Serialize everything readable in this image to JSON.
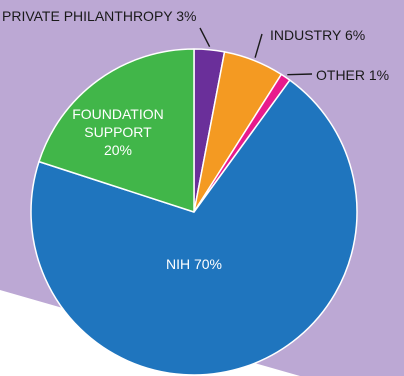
{
  "colors": {
    "background_panel": "#bca8d4",
    "slice_edge": "#ffffff"
  },
  "chart_data": {
    "type": "pie",
    "title": "",
    "slices": [
      {
        "label": "PRIVATE PHILANTHROPY 3%",
        "value": 3,
        "color": "#6a2f9a",
        "label_style": "external"
      },
      {
        "label": "INDUSTRY 6%",
        "value": 6,
        "color": "#f49a22",
        "label_style": "external"
      },
      {
        "label": "OTHER 1%",
        "value": 1,
        "color": "#e81b8c",
        "label_style": "external"
      },
      {
        "label": "NIH 70%",
        "value": 70,
        "color": "#1f75be",
        "label_style": "internal"
      },
      {
        "label": "FOUNDATION SUPPORT 20%",
        "label_lines": [
          "FOUNDATION",
          "SUPPORT",
          "20%"
        ],
        "value": 20,
        "color": "#41b649",
        "label_style": "internal"
      }
    ],
    "start_angle_deg": 0,
    "direction": "clockwise"
  }
}
